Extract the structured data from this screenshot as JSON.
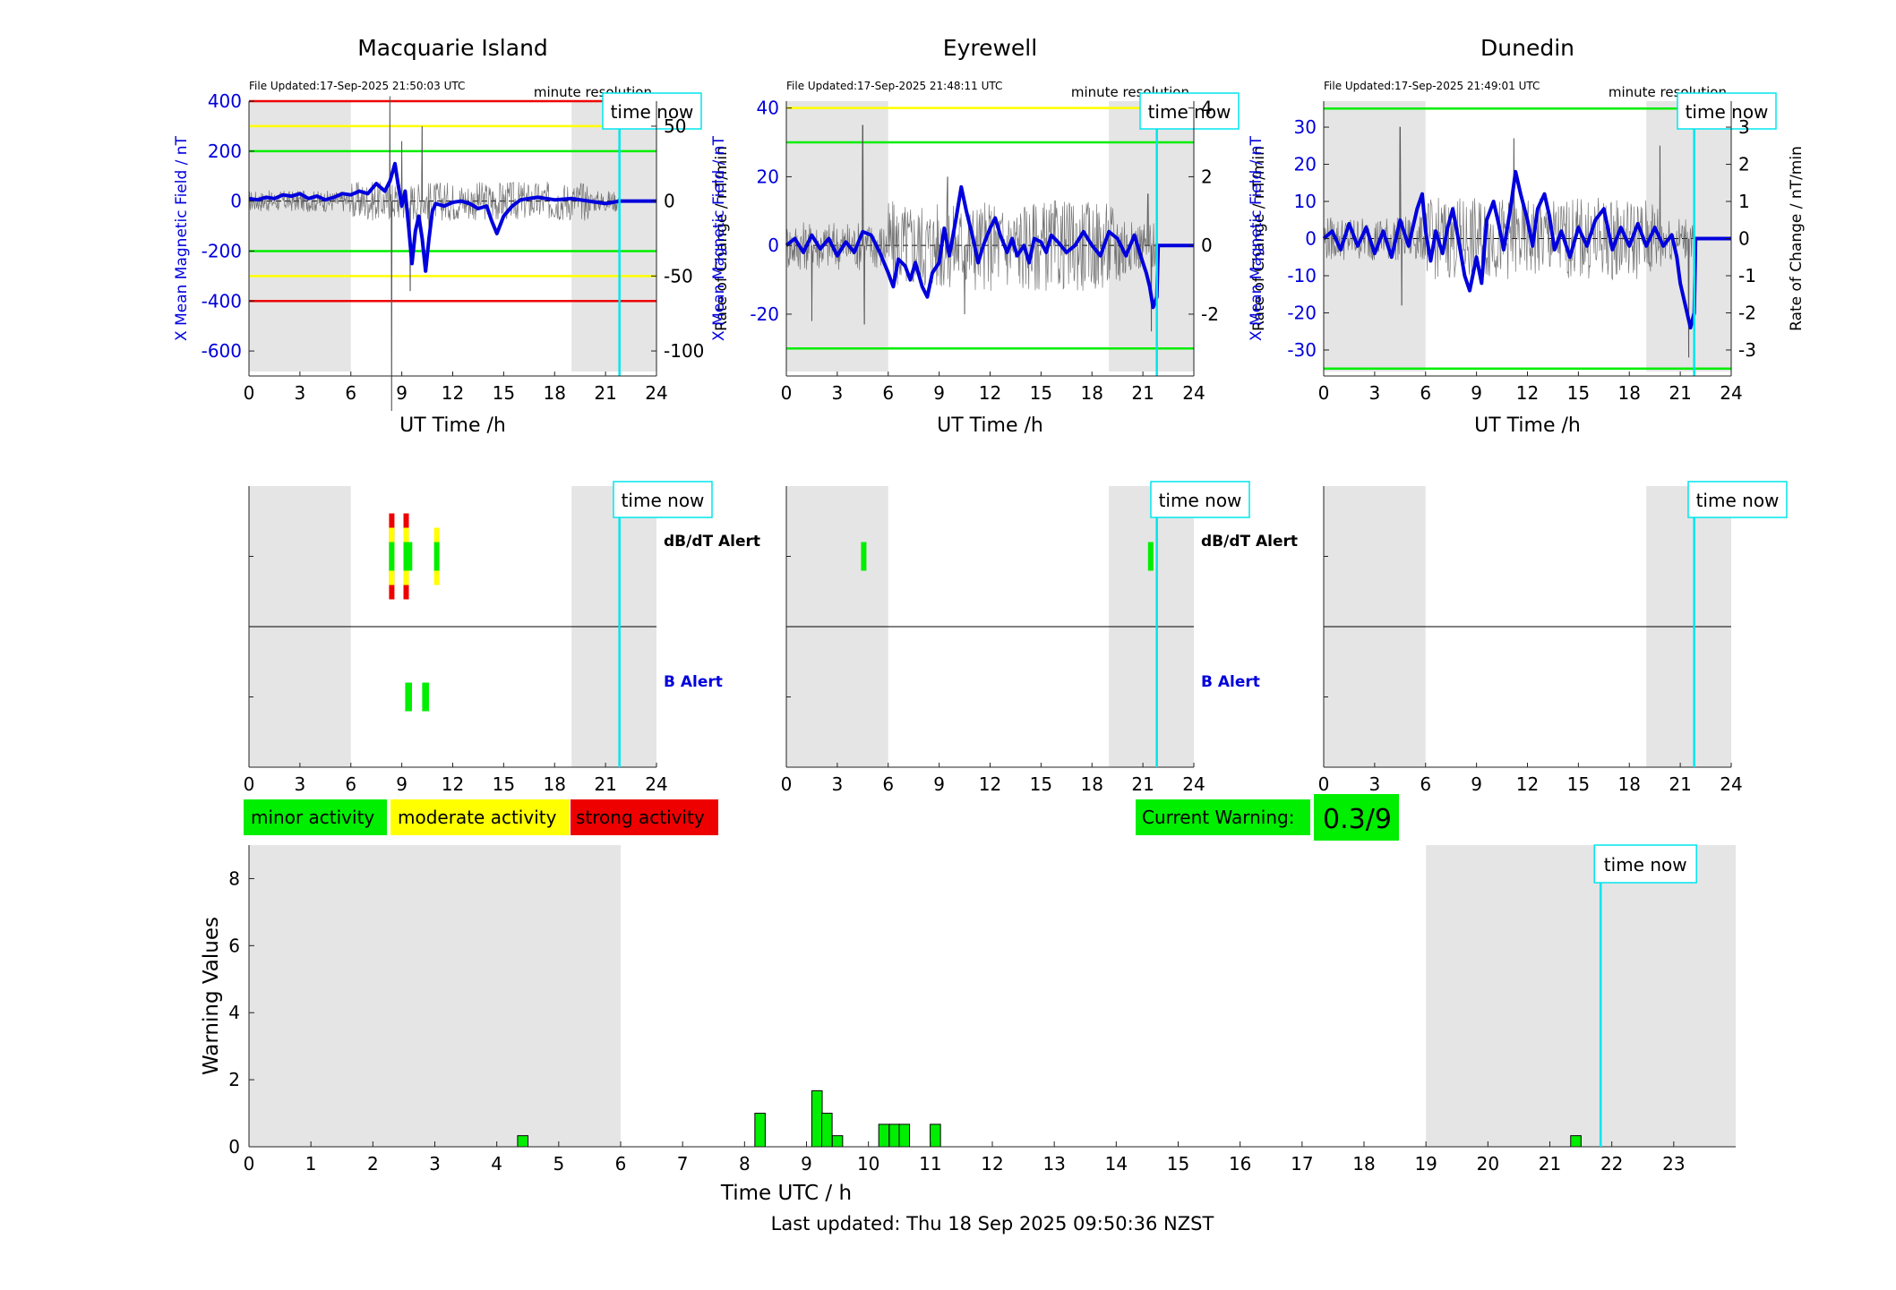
{
  "time_now_label": "time now",
  "time_now_hours": 21.82,
  "night_shading_hours": [
    [
      0,
      6
    ],
    [
      19,
      24
    ]
  ],
  "colors": {
    "shade": "#e5e5e5",
    "cursor": "#00e5ee",
    "mean_line": "#0000dd",
    "rate_line": "#555555",
    "minor": "#00ee00",
    "moderate": "#ffff00",
    "strong": "#ee0000"
  },
  "stations": [
    {
      "title": "Macquarie Island",
      "file_updated": "File Updated:17-Sep-2025 21:50:03 UTC",
      "resolution": "minute resolution",
      "xlabel": "UT Time /h",
      "ylabel_left": "X Mean Magnetic Field / nT",
      "ylabel_right": "Rate of Change / nT/min",
      "x_ticks": [
        0,
        3,
        6,
        9,
        12,
        15,
        18,
        21,
        24
      ],
      "y_left_range": [
        -700,
        400
      ],
      "y_left_ticks": [
        -600,
        -400,
        -200,
        0,
        200,
        400
      ],
      "y_right_range": [
        -116.7,
        66.7
      ],
      "y_right_ticks": [
        -100,
        -50,
        0,
        50
      ],
      "threshold_lines": [
        {
          "value": 400,
          "color": "#ee0000"
        },
        {
          "value": 300,
          "color": "#ffff00"
        },
        {
          "value": 200,
          "color": "#00ee00"
        },
        {
          "value": -200,
          "color": "#00ee00"
        },
        {
          "value": -300,
          "color": "#ffff00"
        },
        {
          "value": -400,
          "color": "#ee0000"
        }
      ],
      "mean_series": [
        [
          0,
          10
        ],
        [
          0.5,
          5
        ],
        [
          1,
          15
        ],
        [
          1.5,
          10
        ],
        [
          2,
          25
        ],
        [
          2.5,
          20
        ],
        [
          3,
          30
        ],
        [
          3.5,
          10
        ],
        [
          4,
          20
        ],
        [
          4.5,
          5
        ],
        [
          5,
          15
        ],
        [
          5.5,
          30
        ],
        [
          6,
          25
        ],
        [
          6.5,
          40
        ],
        [
          7,
          30
        ],
        [
          7.5,
          70
        ],
        [
          8,
          40
        ],
        [
          8.3,
          80
        ],
        [
          8.6,
          150
        ],
        [
          8.8,
          60
        ],
        [
          9,
          -20
        ],
        [
          9.2,
          40
        ],
        [
          9.4,
          -100
        ],
        [
          9.6,
          -250
        ],
        [
          9.8,
          -120
        ],
        [
          10,
          -60
        ],
        [
          10.2,
          -150
        ],
        [
          10.4,
          -280
        ],
        [
          10.6,
          -150
        ],
        [
          10.8,
          -40
        ],
        [
          11,
          -10
        ],
        [
          11.5,
          -20
        ],
        [
          12,
          -5
        ],
        [
          12.5,
          0
        ],
        [
          13,
          -10
        ],
        [
          13.5,
          -30
        ],
        [
          14,
          -20
        ],
        [
          14.3,
          -80
        ],
        [
          14.6,
          -130
        ],
        [
          15,
          -60
        ],
        [
          15.5,
          -20
        ],
        [
          16,
          5
        ],
        [
          17,
          15
        ],
        [
          18,
          5
        ],
        [
          19,
          10
        ],
        [
          20,
          0
        ],
        [
          21,
          -10
        ],
        [
          21.82,
          0
        ],
        [
          24,
          0
        ]
      ],
      "rate_amplitude": 6,
      "rate_spikes": [
        [
          8.3,
          70
        ],
        [
          8.4,
          -140
        ],
        [
          9,
          40
        ],
        [
          9.5,
          -60
        ],
        [
          10.2,
          50
        ],
        [
          10.6,
          -30
        ]
      ],
      "alerts": {
        "dbdt_label": "dB/dT Alert",
        "b_label": "B Alert",
        "dbdt": [
          [
            8.25,
            8.45,
            3
          ],
          [
            9.1,
            9.3,
            3
          ],
          [
            9.3,
            9.6,
            1
          ],
          [
            10.9,
            11.1,
            2
          ]
        ],
        "b": [
          [
            9.2,
            9.6,
            1
          ],
          [
            10.2,
            10.6,
            1
          ]
        ]
      }
    },
    {
      "title": "Eyrewell",
      "file_updated": "File Updated:17-Sep-2025 21:48:11 UTC",
      "resolution": "minute resolution",
      "xlabel": "UT Time /h",
      "ylabel_left": "X Mean Magnetic Field / nT",
      "ylabel_right": "Rate of Change / nT/min",
      "x_ticks": [
        0,
        3,
        6,
        9,
        12,
        15,
        18,
        21,
        24
      ],
      "y_left_range": [
        -38,
        42
      ],
      "y_left_ticks": [
        -20,
        0,
        20,
        40
      ],
      "y_right_range": [
        -3.8,
        4.2
      ],
      "y_right_ticks": [
        -2,
        0,
        2,
        4
      ],
      "threshold_lines": [
        {
          "value": 40,
          "color": "#ffff00"
        },
        {
          "value": 30,
          "color": "#00ee00"
        },
        {
          "value": -30,
          "color": "#00ee00"
        }
      ],
      "mean_series": [
        [
          0,
          0
        ],
        [
          0.5,
          2
        ],
        [
          1,
          -2
        ],
        [
          1.5,
          3
        ],
        [
          2,
          -1
        ],
        [
          2.5,
          2
        ],
        [
          3,
          -3
        ],
        [
          3.5,
          1
        ],
        [
          4,
          -2
        ],
        [
          4.5,
          4
        ],
        [
          5,
          3
        ],
        [
          5.5,
          -2
        ],
        [
          6,
          -8
        ],
        [
          6.3,
          -12
        ],
        [
          6.6,
          -4
        ],
        [
          7,
          -6
        ],
        [
          7.3,
          -10
        ],
        [
          7.6,
          -5
        ],
        [
          8,
          -12
        ],
        [
          8.3,
          -15
        ],
        [
          8.6,
          -8
        ],
        [
          9,
          -5
        ],
        [
          9.3,
          5
        ],
        [
          9.6,
          -3
        ],
        [
          10,
          8
        ],
        [
          10.3,
          17
        ],
        [
          10.6,
          10
        ],
        [
          11,
          2
        ],
        [
          11.3,
          -5
        ],
        [
          11.6,
          0
        ],
        [
          12,
          5
        ],
        [
          12.3,
          8
        ],
        [
          12.6,
          3
        ],
        [
          13,
          -2
        ],
        [
          13.3,
          2
        ],
        [
          13.6,
          -3
        ],
        [
          14,
          0
        ],
        [
          14.3,
          -5
        ],
        [
          14.6,
          2
        ],
        [
          15,
          1
        ],
        [
          15.3,
          -2
        ],
        [
          15.6,
          3
        ],
        [
          16,
          1
        ],
        [
          16.5,
          -2
        ],
        [
          17,
          0
        ],
        [
          17.5,
          4
        ],
        [
          18,
          0
        ],
        [
          18.5,
          -3
        ],
        [
          19,
          4
        ],
        [
          19.5,
          2
        ],
        [
          20,
          -3
        ],
        [
          20.5,
          3
        ],
        [
          21,
          -5
        ],
        [
          21.2,
          -8
        ],
        [
          21.4,
          -12
        ],
        [
          21.6,
          -18
        ],
        [
          21.82,
          -15
        ],
        [
          21.9,
          0
        ],
        [
          24,
          0
        ]
      ],
      "rate_amplitude": 0.6,
      "rate_spikes": [
        [
          4.5,
          3.5
        ],
        [
          4.6,
          -2.3
        ],
        [
          1.5,
          -2.2
        ],
        [
          9.5,
          2
        ],
        [
          10.5,
          -2
        ],
        [
          21.5,
          -2.5
        ],
        [
          21.3,
          1.5
        ]
      ],
      "alerts": {
        "dbdt_label": "dB/dT Alert",
        "b_label": "B Alert",
        "dbdt": [
          [
            4.4,
            4.7,
            1
          ],
          [
            21.3,
            21.6,
            1
          ]
        ],
        "b": []
      }
    },
    {
      "title": "Dunedin",
      "file_updated": "File Updated:17-Sep-2025 21:49:01 UTC",
      "resolution": "minute resolution",
      "xlabel": "UT Time /h",
      "ylabel_left": "X Mean Magnetic Field / nT",
      "ylabel_right": "Rate of Change / nT/min",
      "x_ticks": [
        0,
        3,
        6,
        9,
        12,
        15,
        18,
        21,
        24
      ],
      "y_left_range": [
        -37,
        37
      ],
      "y_left_ticks": [
        -30,
        -20,
        -10,
        0,
        10,
        20,
        30
      ],
      "y_right_range": [
        -3.7,
        3.7
      ],
      "y_right_ticks": [
        -3,
        -2,
        -1,
        0,
        1,
        2,
        3
      ],
      "threshold_lines": [
        {
          "value": 35,
          "color": "#00ee00"
        },
        {
          "value": -35,
          "color": "#00ee00"
        }
      ],
      "mean_series": [
        [
          0,
          0
        ],
        [
          0.5,
          2
        ],
        [
          1,
          -3
        ],
        [
          1.5,
          4
        ],
        [
          2,
          -2
        ],
        [
          2.5,
          3
        ],
        [
          3,
          -4
        ],
        [
          3.5,
          2
        ],
        [
          4,
          -5
        ],
        [
          4.5,
          5
        ],
        [
          5,
          -2
        ],
        [
          5.5,
          8
        ],
        [
          5.8,
          12
        ],
        [
          6,
          2
        ],
        [
          6.3,
          -6
        ],
        [
          6.6,
          2
        ],
        [
          7,
          -4
        ],
        [
          7.3,
          3
        ],
        [
          7.6,
          8
        ],
        [
          8,
          -2
        ],
        [
          8.3,
          -10
        ],
        [
          8.6,
          -14
        ],
        [
          9,
          -5
        ],
        [
          9.3,
          -12
        ],
        [
          9.6,
          5
        ],
        [
          10,
          10
        ],
        [
          10.3,
          4
        ],
        [
          10.6,
          -3
        ],
        [
          11,
          8
        ],
        [
          11.3,
          18
        ],
        [
          11.6,
          12
        ],
        [
          12,
          5
        ],
        [
          12.3,
          -2
        ],
        [
          12.6,
          8
        ],
        [
          13,
          12
        ],
        [
          13.3,
          6
        ],
        [
          13.6,
          -3
        ],
        [
          14,
          2
        ],
        [
          14.5,
          -5
        ],
        [
          15,
          3
        ],
        [
          15.5,
          -2
        ],
        [
          16,
          5
        ],
        [
          16.5,
          8
        ],
        [
          17,
          -3
        ],
        [
          17.5,
          3
        ],
        [
          18,
          -2
        ],
        [
          18.5,
          4
        ],
        [
          19,
          -2
        ],
        [
          19.5,
          3
        ],
        [
          20,
          -2
        ],
        [
          20.5,
          1
        ],
        [
          20.8,
          -5
        ],
        [
          21,
          -12
        ],
        [
          21.3,
          -18
        ],
        [
          21.6,
          -24
        ],
        [
          21.82,
          -20
        ],
        [
          21.9,
          0
        ],
        [
          24,
          0
        ]
      ],
      "rate_amplitude": 0.5,
      "rate_spikes": [
        [
          4.5,
          3
        ],
        [
          4.6,
          -1.8
        ],
        [
          11.2,
          2.7
        ],
        [
          19.8,
          2.5
        ],
        [
          21.5,
          -3.2
        ]
      ],
      "alerts": {
        "dbdt_label": "",
        "b_label": "",
        "dbdt": [],
        "b": []
      }
    }
  ],
  "legend": {
    "minor": "minor activity",
    "moderate": "moderate activity",
    "strong": "strong activity"
  },
  "current_warning": {
    "label": "Current Warning:",
    "value": "0.3/9"
  },
  "chart_data": {
    "type": "bar",
    "xlabel": "Time UTC / h",
    "ylabel": "Warning Values",
    "xlim": [
      0,
      24
    ],
    "ylim": [
      0,
      9
    ],
    "x_ticks": [
      0,
      1,
      2,
      3,
      4,
      5,
      6,
      7,
      8,
      9,
      10,
      11,
      12,
      13,
      14,
      15,
      16,
      17,
      18,
      19,
      20,
      21,
      22,
      23
    ],
    "y_ticks": [
      0,
      2,
      4,
      6,
      8
    ],
    "bar_width_hours": 0.167,
    "x": [
      4.42,
      8.25,
      9.17,
      9.33,
      9.5,
      10.25,
      10.42,
      10.58,
      11.08,
      21.42
    ],
    "values": [
      0.33,
      1.0,
      1.67,
      1.0,
      0.33,
      0.67,
      0.67,
      0.67,
      0.67,
      0.33
    ]
  },
  "footer": "Last updated: Thu 18 Sep 2025 09:50:36 NZST"
}
